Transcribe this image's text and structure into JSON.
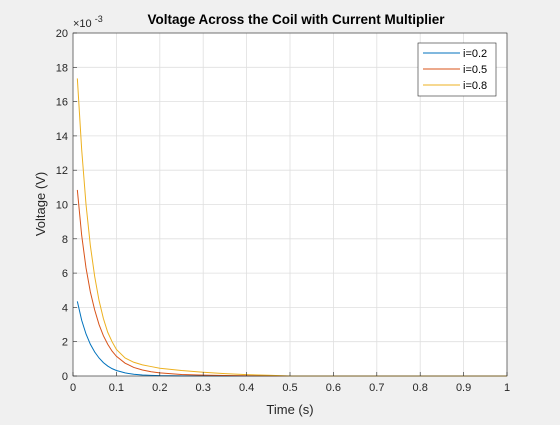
{
  "chart_data": {
    "type": "line",
    "title": "Voltage Across the Coil with Current Multiplier",
    "xlabel": "Time (s)",
    "ylabel": "Voltage (V)",
    "y_exponent_label": "×10",
    "y_exponent_power": "-3",
    "xlim": [
      0,
      1
    ],
    "ylim": [
      0,
      20
    ],
    "xticks": [
      "0",
      "0.1",
      "0.2",
      "0.3",
      "0.4",
      "0.5",
      "0.6",
      "0.7",
      "0.8",
      "0.9",
      "1"
    ],
    "yticks": [
      "0",
      "2",
      "4",
      "6",
      "8",
      "10",
      "12",
      "14",
      "16",
      "18",
      "20"
    ],
    "grid": true,
    "legend_position": "top-right",
    "x": [
      0.01,
      0.02,
      0.03,
      0.04,
      0.05,
      0.06,
      0.07,
      0.08,
      0.09,
      0.1,
      0.12,
      0.14,
      0.16,
      0.18,
      0.2,
      0.25,
      0.3,
      0.35,
      0.4,
      0.45,
      0.5,
      0.55,
      0.6,
      0.7,
      0.8,
      0.9,
      1.0
    ],
    "series": [
      {
        "name": "i=0.2",
        "color": "#0072BD",
        "values": [
          4.35,
          3.25,
          2.45,
          1.85,
          1.4,
          1.05,
          0.78,
          0.58,
          0.43,
          0.32,
          0.18,
          0.1,
          0.06,
          0.035,
          0.02,
          0.01,
          0.005,
          0.003,
          0.002,
          0.001,
          0.0,
          0.0,
          0.0,
          0.0,
          0.0,
          0.0,
          0.0
        ]
      },
      {
        "name": "i=0.5",
        "color": "#D95319",
        "values": [
          10.85,
          8.2,
          6.3,
          4.9,
          3.85,
          3.0,
          2.35,
          1.85,
          1.45,
          1.15,
          0.75,
          0.5,
          0.35,
          0.25,
          0.18,
          0.09,
          0.05,
          0.03,
          0.015,
          0.008,
          0.0,
          0.0,
          0.0,
          0.0,
          0.0,
          0.0,
          0.0
        ]
      },
      {
        "name": "i=0.8",
        "color": "#EDB120",
        "values": [
          17.35,
          13.2,
          10.0,
          7.6,
          5.8,
          4.4,
          3.35,
          2.55,
          2.0,
          1.55,
          1.05,
          0.8,
          0.65,
          0.55,
          0.45,
          0.32,
          0.22,
          0.14,
          0.08,
          0.04,
          0.0,
          0.0,
          0.0,
          0.0,
          0.0,
          0.0,
          0.0
        ]
      }
    ]
  }
}
